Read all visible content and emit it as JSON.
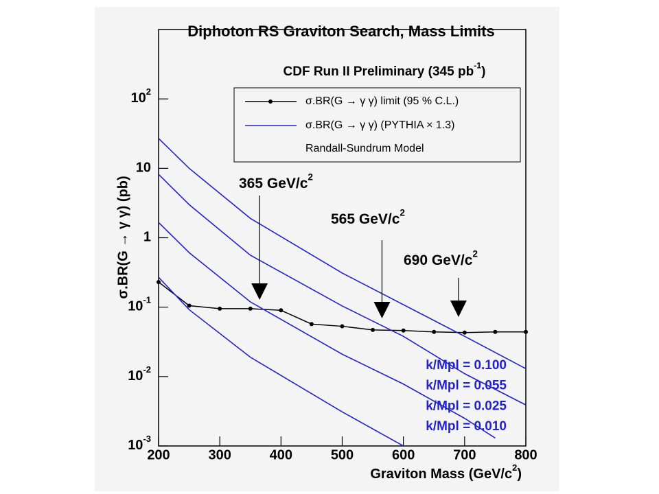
{
  "chart_data": {
    "type": "line",
    "title": "Diphoton RS Graviton Search, Mass Limits",
    "subtitle": {
      "text": "CDF Run II Preliminary (345 pb",
      "sup": "-1",
      "tail": ")"
    },
    "x_label": {
      "text": "Graviton Mass (GeV/c",
      "sup": "2",
      "tail": ")"
    },
    "y_label": "σ.BR(G → γ γ) (pb)",
    "log_y": true,
    "xlim": [
      200,
      800
    ],
    "ylim": [
      0.001,
      1000
    ],
    "xticks": [
      200,
      300,
      400,
      500,
      600,
      700,
      800
    ],
    "yticks": [
      {
        "value": 0.001,
        "label": "10",
        "sup": "-3"
      },
      {
        "value": 0.01,
        "label": "10",
        "sup": "-2"
      },
      {
        "value": 0.1,
        "label": "10",
        "sup": "-1"
      },
      {
        "value": 1,
        "label": "1"
      },
      {
        "value": 10,
        "label": "10"
      },
      {
        "value": 100,
        "label": "10",
        "sup": "2"
      }
    ],
    "legend_header": "Randall-Sundrum Model",
    "series": [
      {
        "name": "σ.BR(G → γ γ) limit (95 % C.L.)",
        "color": "#000000",
        "markers": true,
        "x": [
          200,
          250,
          300,
          350,
          400,
          450,
          500,
          550,
          600,
          650,
          700,
          750,
          800
        ],
        "values": [
          0.23,
          0.105,
          0.095,
          0.095,
          0.09,
          0.057,
          0.053,
          0.047,
          0.046,
          0.044,
          0.043,
          0.044,
          0.044
        ]
      },
      {
        "name": "σ.BR(G → γ γ) (PYTHIA × 1.3)",
        "color": "#2222cc",
        "markers": false,
        "x": [
          200,
          250,
          350,
          500,
          700,
          800
        ],
        "values": [
          27,
          10,
          1.9,
          0.31,
          0.038,
          0.013
        ]
      },
      {
        "color": "#2222cc",
        "markers": false,
        "x": [
          200,
          250,
          350,
          500,
          600,
          700,
          800
        ],
        "values": [
          8.2,
          3.0,
          0.56,
          0.104,
          0.038,
          0.011,
          0.0039
        ]
      },
      {
        "color": "#2222cc",
        "markers": false,
        "x": [
          200,
          250,
          350,
          500,
          600,
          700,
          750
        ],
        "values": [
          1.66,
          0.61,
          0.119,
          0.021,
          0.0078,
          0.0025,
          0.0013
        ]
      },
      {
        "color": "#2222cc",
        "markers": false,
        "x": [
          200,
          250,
          350,
          500,
          600
        ],
        "values": [
          0.27,
          0.092,
          0.019,
          0.0031,
          0.001
        ]
      }
    ],
    "annotations": [
      {
        "text": "365 GeV/c",
        "sup": "2",
        "x": 365
      },
      {
        "text": "565 GeV/c",
        "sup": "2",
        "x": 565
      },
      {
        "text": "690 GeV/c",
        "sup": "2",
        "x": 690
      }
    ],
    "curve_labels": [
      "k/Mpl = 0.100",
      "k/Mpl = 0.055",
      "k/Mpl = 0.025",
      "k/Mpl = 0.010"
    ],
    "curve_label_color": "#2222cc"
  }
}
